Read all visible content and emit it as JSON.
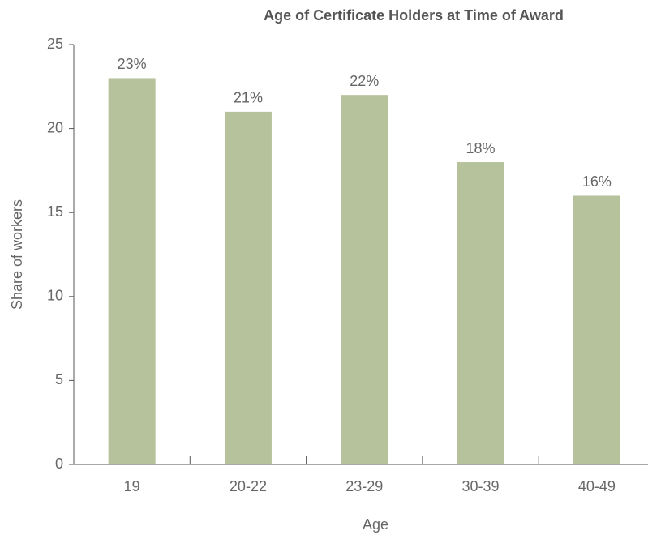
{
  "chart_data": {
    "type": "bar",
    "title": "Age of Certificate Holders at Time of Award",
    "x_label": "Age",
    "y_label": "Share of workers",
    "categories": [
      "19",
      "20-22",
      "23-29",
      "30-39",
      "40-49"
    ],
    "values": [
      23,
      21,
      22,
      18,
      16
    ],
    "value_labels": [
      "23%",
      "21%",
      "22%",
      "18%",
      "16%"
    ],
    "color": "#b5c29c",
    "ylim": [
      0,
      25
    ],
    "yticks": [
      0,
      5,
      10,
      15,
      20,
      25
    ],
    "grid": false
  }
}
